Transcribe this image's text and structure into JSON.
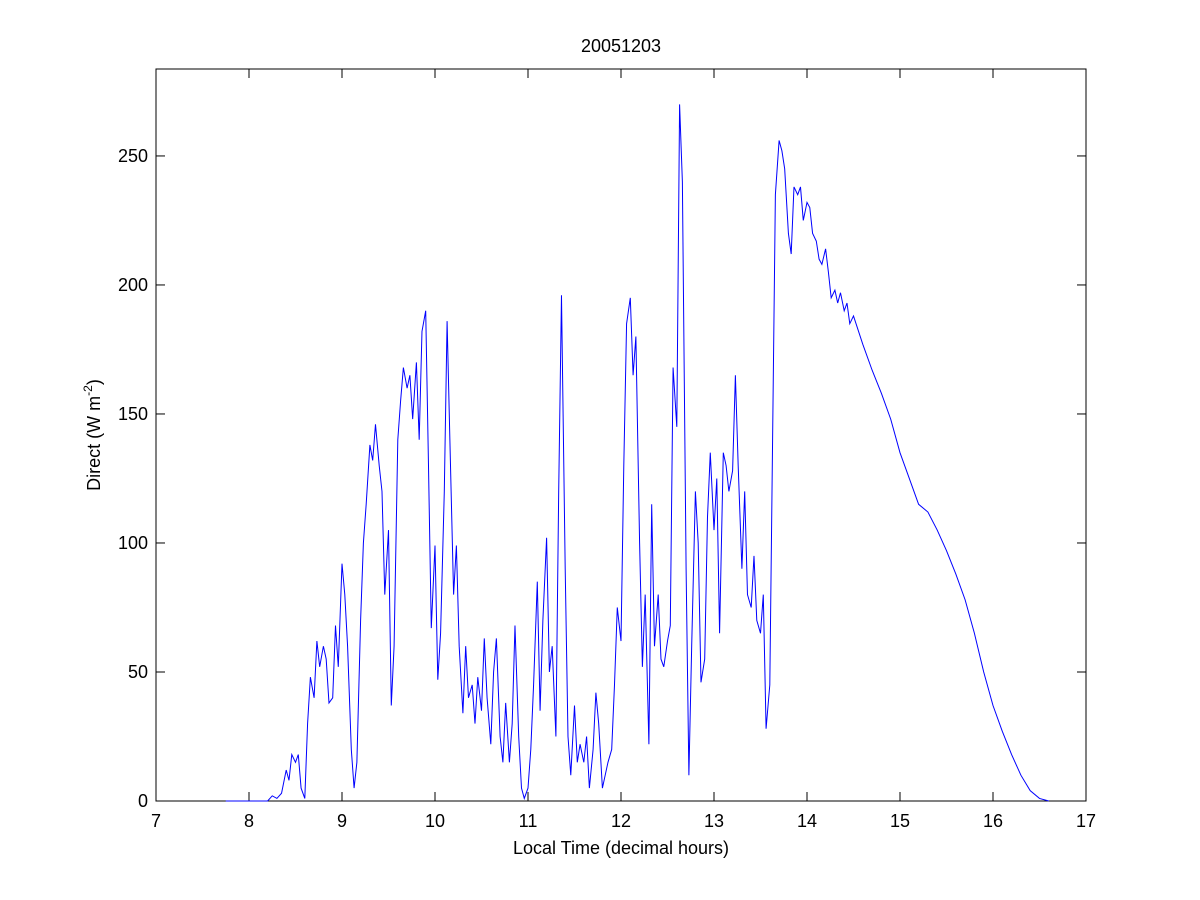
{
  "chart_data": {
    "type": "line",
    "title": "20051203",
    "xlabel": "Local Time (decimal hours)",
    "ylabel": {
      "text": "Direct (W m",
      "superscript": "-2",
      "suffix": ")"
    },
    "xlim": [
      7,
      17
    ],
    "ylim": [
      0,
      283.7
    ],
    "xticks": [
      7,
      8,
      9,
      10,
      11,
      12,
      13,
      14,
      15,
      16,
      17
    ],
    "yticks": [
      0,
      50,
      100,
      150,
      200,
      250
    ],
    "grid": false,
    "x": [
      7.75,
      8.0,
      8.2,
      8.25,
      8.3,
      8.35,
      8.4,
      8.43,
      8.46,
      8.5,
      8.53,
      8.56,
      8.6,
      8.63,
      8.66,
      8.7,
      8.73,
      8.76,
      8.8,
      8.83,
      8.86,
      8.9,
      8.93,
      8.96,
      9.0,
      9.03,
      9.06,
      9.1,
      9.13,
      9.16,
      9.2,
      9.23,
      9.26,
      9.3,
      9.33,
      9.36,
      9.4,
      9.43,
      9.46,
      9.5,
      9.53,
      9.56,
      9.6,
      9.63,
      9.66,
      9.7,
      9.73,
      9.76,
      9.8,
      9.83,
      9.86,
      9.9,
      9.93,
      9.96,
      10.0,
      10.03,
      10.06,
      10.1,
      10.13,
      10.16,
      10.2,
      10.23,
      10.26,
      10.3,
      10.33,
      10.36,
      10.4,
      10.43,
      10.46,
      10.5,
      10.53,
      10.56,
      10.6,
      10.63,
      10.66,
      10.7,
      10.73,
      10.76,
      10.8,
      10.83,
      10.86,
      10.9,
      10.93,
      10.96,
      11.0,
      11.03,
      11.06,
      11.1,
      11.13,
      11.16,
      11.2,
      11.23,
      11.26,
      11.3,
      11.33,
      11.36,
      11.4,
      11.43,
      11.46,
      11.5,
      11.53,
      11.56,
      11.6,
      11.63,
      11.66,
      11.7,
      11.73,
      11.76,
      11.8,
      11.83,
      11.86,
      11.9,
      11.93,
      11.96,
      12.0,
      12.03,
      12.06,
      12.1,
      12.13,
      12.16,
      12.2,
      12.23,
      12.26,
      12.3,
      12.33,
      12.36,
      12.4,
      12.43,
      12.46,
      12.5,
      12.53,
      12.56,
      12.6,
      12.63,
      12.66,
      12.7,
      12.73,
      12.76,
      12.8,
      12.83,
      12.86,
      12.9,
      12.93,
      12.96,
      13.0,
      13.03,
      13.06,
      13.1,
      13.13,
      13.16,
      13.2,
      13.23,
      13.26,
      13.3,
      13.33,
      13.36,
      13.4,
      13.43,
      13.46,
      13.5,
      13.53,
      13.56,
      13.6,
      13.63,
      13.66,
      13.7,
      13.73,
      13.76,
      13.8,
      13.83,
      13.86,
      13.9,
      13.93,
      13.96,
      14.0,
      14.03,
      14.06,
      14.1,
      14.13,
      14.16,
      14.2,
      14.23,
      14.26,
      14.3,
      14.33,
      14.36,
      14.4,
      14.43,
      14.46,
      14.5,
      14.6,
      14.7,
      14.8,
      14.9,
      15.0,
      15.1,
      15.2,
      15.3,
      15.4,
      15.5,
      15.6,
      15.7,
      15.8,
      15.9,
      16.0,
      16.1,
      16.2,
      16.3,
      16.4,
      16.5,
      16.6
    ],
    "series": [
      {
        "name": "Direct",
        "color": "#0000ff",
        "values": [
          0,
          0,
          0,
          2,
          1,
          3,
          12,
          8,
          18,
          15,
          18,
          5,
          1,
          30,
          48,
          40,
          62,
          52,
          60,
          55,
          38,
          40,
          68,
          52,
          92,
          80,
          60,
          20,
          5,
          15,
          70,
          100,
          115,
          138,
          132,
          146,
          130,
          120,
          80,
          105,
          37,
          60,
          140,
          155,
          168,
          160,
          165,
          148,
          170,
          140,
          182,
          190,
          130,
          67,
          99,
          47,
          65,
          120,
          186,
          140,
          80,
          99,
          60,
          34,
          60,
          40,
          45,
          30,
          48,
          35,
          63,
          40,
          22,
          50,
          63,
          25,
          15,
          38,
          15,
          30,
          68,
          25,
          5,
          1,
          5,
          20,
          45,
          85,
          35,
          70,
          102,
          50,
          60,
          25,
          120,
          196,
          90,
          25,
          10,
          37,
          15,
          22,
          15,
          25,
          5,
          20,
          42,
          30,
          5,
          10,
          15,
          20,
          45,
          75,
          62,
          130,
          185,
          195,
          165,
          180,
          100,
          52,
          80,
          22,
          115,
          60,
          80,
          55,
          52,
          62,
          68,
          168,
          145,
          270,
          240,
          90,
          10,
          60,
          120,
          100,
          46,
          55,
          110,
          135,
          105,
          125,
          65,
          135,
          130,
          120,
          128,
          165,
          130,
          90,
          120,
          80,
          75,
          95,
          70,
          65,
          80,
          28,
          45,
          140,
          235,
          256,
          252,
          245,
          220,
          212,
          238,
          235,
          238,
          225,
          232,
          230,
          220,
          217,
          210,
          208,
          214,
          205,
          195,
          198,
          193,
          197,
          190,
          193,
          185,
          188,
          177,
          167,
          158,
          148,
          135,
          125,
          115,
          112,
          105,
          97,
          88,
          78,
          65,
          50,
          37,
          27,
          18,
          10,
          4,
          1,
          0
        ]
      }
    ]
  }
}
